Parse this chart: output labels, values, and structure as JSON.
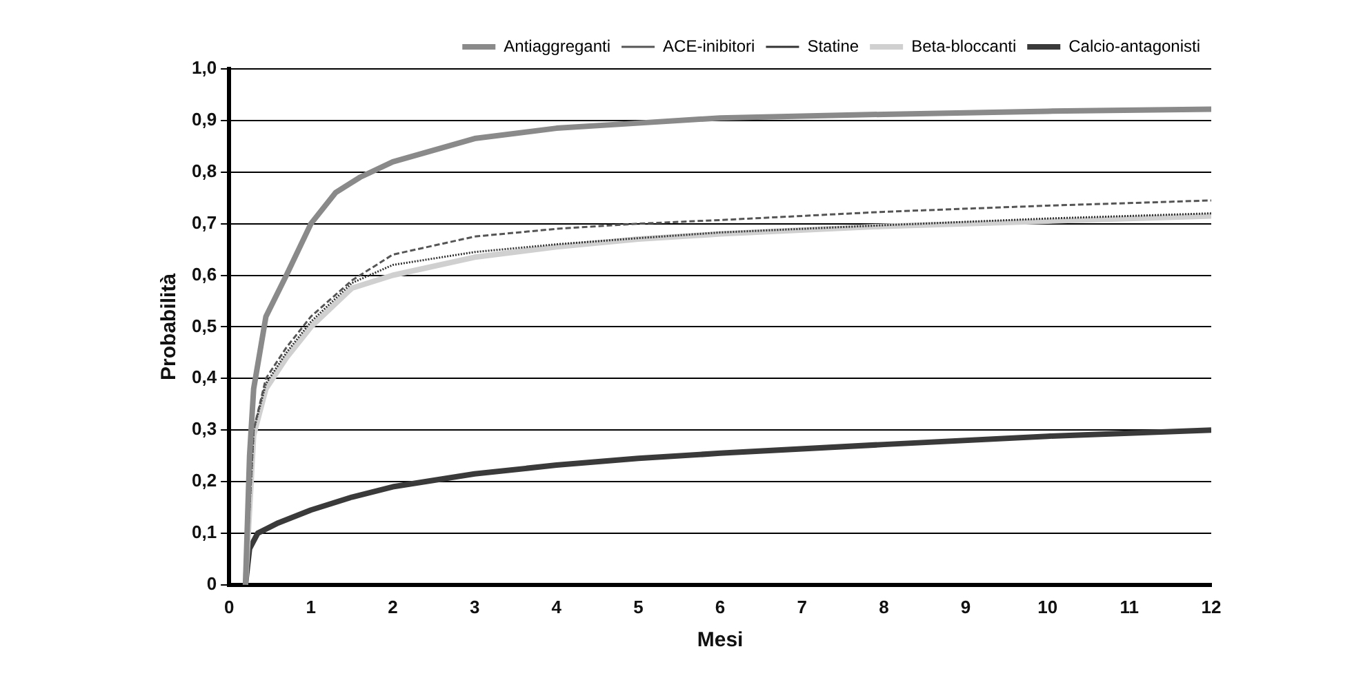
{
  "chart_data": {
    "type": "line",
    "xlabel": "Mesi",
    "ylabel": "Probabilità",
    "xlim": [
      0,
      12
    ],
    "xticks": [
      0,
      1,
      2,
      3,
      4,
      5,
      6,
      7,
      8,
      9,
      10,
      11,
      12
    ],
    "ylim": [
      0,
      1
    ],
    "yticks": [
      0,
      {
        "value": 0.1,
        "label": "0,1"
      },
      {
        "value": 0.2,
        "label": "0,2"
      },
      {
        "value": 0.3,
        "label": "0,3"
      },
      {
        "value": 0.4,
        "label": "0,4"
      },
      {
        "value": 0.5,
        "label": "0,5"
      },
      {
        "value": 0.6,
        "label": "0,6"
      },
      {
        "value": 0.7,
        "label": "0,7"
      },
      {
        "value": 0.8,
        "label": "0,8"
      },
      {
        "value": 0.9,
        "label": "0,9"
      },
      {
        "value": 1,
        "label": "1,0"
      }
    ],
    "grid": "y",
    "legend": "top right",
    "marker": "none",
    "series": [
      {
        "name": "Antiaggreganti",
        "color": "#8a8a8a",
        "line_style": "solid",
        "x": [
          0.2,
          0.25,
          0.3,
          0.45,
          0.7,
          1,
          1.3,
          1.6,
          2,
          3,
          4,
          5,
          6,
          8,
          10,
          12
        ],
        "values": [
          0,
          0.25,
          0.38,
          0.52,
          0.6,
          0.7,
          0.76,
          0.79,
          0.82,
          0.865,
          0.885,
          0.895,
          0.905,
          0.912,
          0.918,
          0.922
        ]
      },
      {
        "name": "ACE-inibitori",
        "color": "#555555",
        "line_style": "dashed",
        "x": [
          0.2,
          0.3,
          0.45,
          0.7,
          1,
          1.5,
          2,
          3,
          4,
          5,
          6,
          8,
          10,
          12
        ],
        "values": [
          0,
          0.3,
          0.4,
          0.46,
          0.52,
          0.59,
          0.64,
          0.675,
          0.69,
          0.7,
          0.707,
          0.723,
          0.735,
          0.745
        ]
      },
      {
        "name": "Statine",
        "color": "#333333",
        "line_style": "dotted",
        "x": [
          0.2,
          0.3,
          0.45,
          0.7,
          1,
          1.5,
          2,
          3,
          4,
          5,
          6,
          8,
          10,
          12
        ],
        "values": [
          0,
          0.3,
          0.39,
          0.45,
          0.51,
          0.585,
          0.62,
          0.645,
          0.66,
          0.672,
          0.683,
          0.697,
          0.71,
          0.72
        ]
      },
      {
        "name": "Beta-bloccanti",
        "color": "#d0d0d0",
        "line_style": "solid",
        "x": [
          0.2,
          0.3,
          0.45,
          0.7,
          1,
          1.5,
          2,
          3,
          4,
          5,
          6,
          8,
          10,
          12
        ],
        "values": [
          0,
          0.29,
          0.38,
          0.44,
          0.5,
          0.575,
          0.6,
          0.635,
          0.655,
          0.67,
          0.68,
          0.695,
          0.705,
          0.715
        ]
      },
      {
        "name": "Calcio-antagonisti",
        "color": "#3a3a3a",
        "line_style": "solid",
        "x": [
          0.2,
          0.25,
          0.35,
          0.6,
          1,
          1.5,
          2,
          3,
          4,
          5,
          6,
          8,
          10,
          12
        ],
        "values": [
          0,
          0.07,
          0.1,
          0.12,
          0.145,
          0.17,
          0.19,
          0.215,
          0.232,
          0.245,
          0.255,
          0.272,
          0.288,
          0.3
        ]
      }
    ]
  }
}
